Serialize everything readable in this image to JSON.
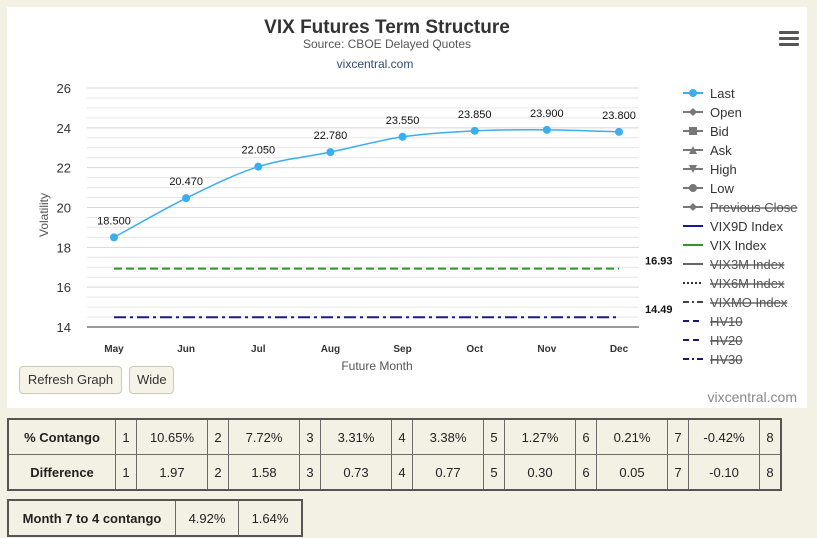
{
  "chart_data": {
    "type": "line",
    "title": "VIX Futures Term Structure",
    "subtitle": "Source: CBOE Delayed Quotes",
    "credit_link": "vixcentral.com",
    "credits": "vixcentral.com",
    "xlabel": "Future Month",
    "ylabel": "Volatility",
    "categories": [
      "May",
      "Jun",
      "Jul",
      "Aug",
      "Sep",
      "Oct",
      "Nov",
      "Dec"
    ],
    "ylim": [
      14,
      26
    ],
    "yticks": [
      "14",
      "16",
      "18",
      "20",
      "22",
      "24",
      "26"
    ],
    "grid": true,
    "series": [
      {
        "name": "Last",
        "values": [
          18.5,
          20.47,
          22.05,
          22.78,
          23.55,
          23.85,
          23.9,
          23.8
        ],
        "labels": [
          "18.500",
          "20.470",
          "22.050",
          "22.780",
          "23.550",
          "23.850",
          "23.900",
          "23.800"
        ],
        "color": "#3aaef0"
      },
      {
        "name": "VIX9D Index",
        "values": [
          14.49,
          14.49,
          14.49,
          14.49,
          14.49,
          14.49,
          14.49,
          14.49
        ],
        "end_label": "14.49",
        "color": "#1a1a8a"
      },
      {
        "name": "VIX Index",
        "values": [
          16.93,
          16.93,
          16.93,
          16.93,
          16.93,
          16.93,
          16.93,
          16.93
        ],
        "end_label": "16.93",
        "color": "#2a9a2a"
      }
    ],
    "legend_position": "right",
    "legend": [
      {
        "name": "Last",
        "marker": "circle",
        "enabled": true,
        "color": "#3aaef0"
      },
      {
        "name": "Open",
        "marker": "diamond",
        "enabled": true,
        "color": "#777777"
      },
      {
        "name": "Bid",
        "marker": "square",
        "enabled": true,
        "color": "#777777"
      },
      {
        "name": "Ask",
        "marker": "triangle",
        "enabled": true,
        "color": "#777777"
      },
      {
        "name": "High",
        "marker": "triangle-down",
        "enabled": true,
        "color": "#777777"
      },
      {
        "name": "Low",
        "marker": "circle",
        "enabled": true,
        "color": "#777777"
      },
      {
        "name": "Previous Close",
        "marker": "diamond",
        "enabled": false,
        "color": "#777777"
      },
      {
        "name": "VIX9D Index",
        "marker": "line",
        "enabled": true,
        "color": "#1a1a8a"
      },
      {
        "name": "VIX Index",
        "marker": "line",
        "enabled": true,
        "color": "#2a9a2a"
      },
      {
        "name": "VIX3M Index",
        "marker": "line",
        "enabled": false,
        "color": "#666666"
      },
      {
        "name": "VIX6M Index",
        "marker": "dotted",
        "enabled": false,
        "color": "#333333"
      },
      {
        "name": "VIXMO Index",
        "marker": "dashdot",
        "enabled": false,
        "color": "#444444"
      },
      {
        "name": "HV10",
        "marker": "dash",
        "enabled": false,
        "color": "#1a1a6a"
      },
      {
        "name": "HV20",
        "marker": "dash",
        "enabled": false,
        "color": "#1a1a6a"
      },
      {
        "name": "HV30",
        "marker": "dashdot",
        "enabled": false,
        "color": "#1a1a6a"
      }
    ]
  },
  "buttons": {
    "refresh": "Refresh Graph",
    "wide": "Wide"
  },
  "contango_table": {
    "rows": [
      {
        "head": "% Contango",
        "cells": [
          [
            "1",
            "10.65%"
          ],
          [
            "2",
            "7.72%"
          ],
          [
            "3",
            "3.31%"
          ],
          [
            "4",
            "3.38%"
          ],
          [
            "5",
            "1.27%"
          ],
          [
            "6",
            "0.21%"
          ],
          [
            "7",
            "-0.42%"
          ]
        ],
        "last": "8"
      },
      {
        "head": "Difference",
        "cells": [
          [
            "1",
            "1.97"
          ],
          [
            "2",
            "1.58"
          ],
          [
            "3",
            "0.73"
          ],
          [
            "4",
            "0.77"
          ],
          [
            "5",
            "0.30"
          ],
          [
            "6",
            "0.05"
          ],
          [
            "7",
            "-0.10"
          ]
        ],
        "last": "8"
      }
    ]
  },
  "month7_table": {
    "head": "Month 7 to 4 contango",
    "values": [
      "4.92%",
      "1.64%"
    ]
  }
}
